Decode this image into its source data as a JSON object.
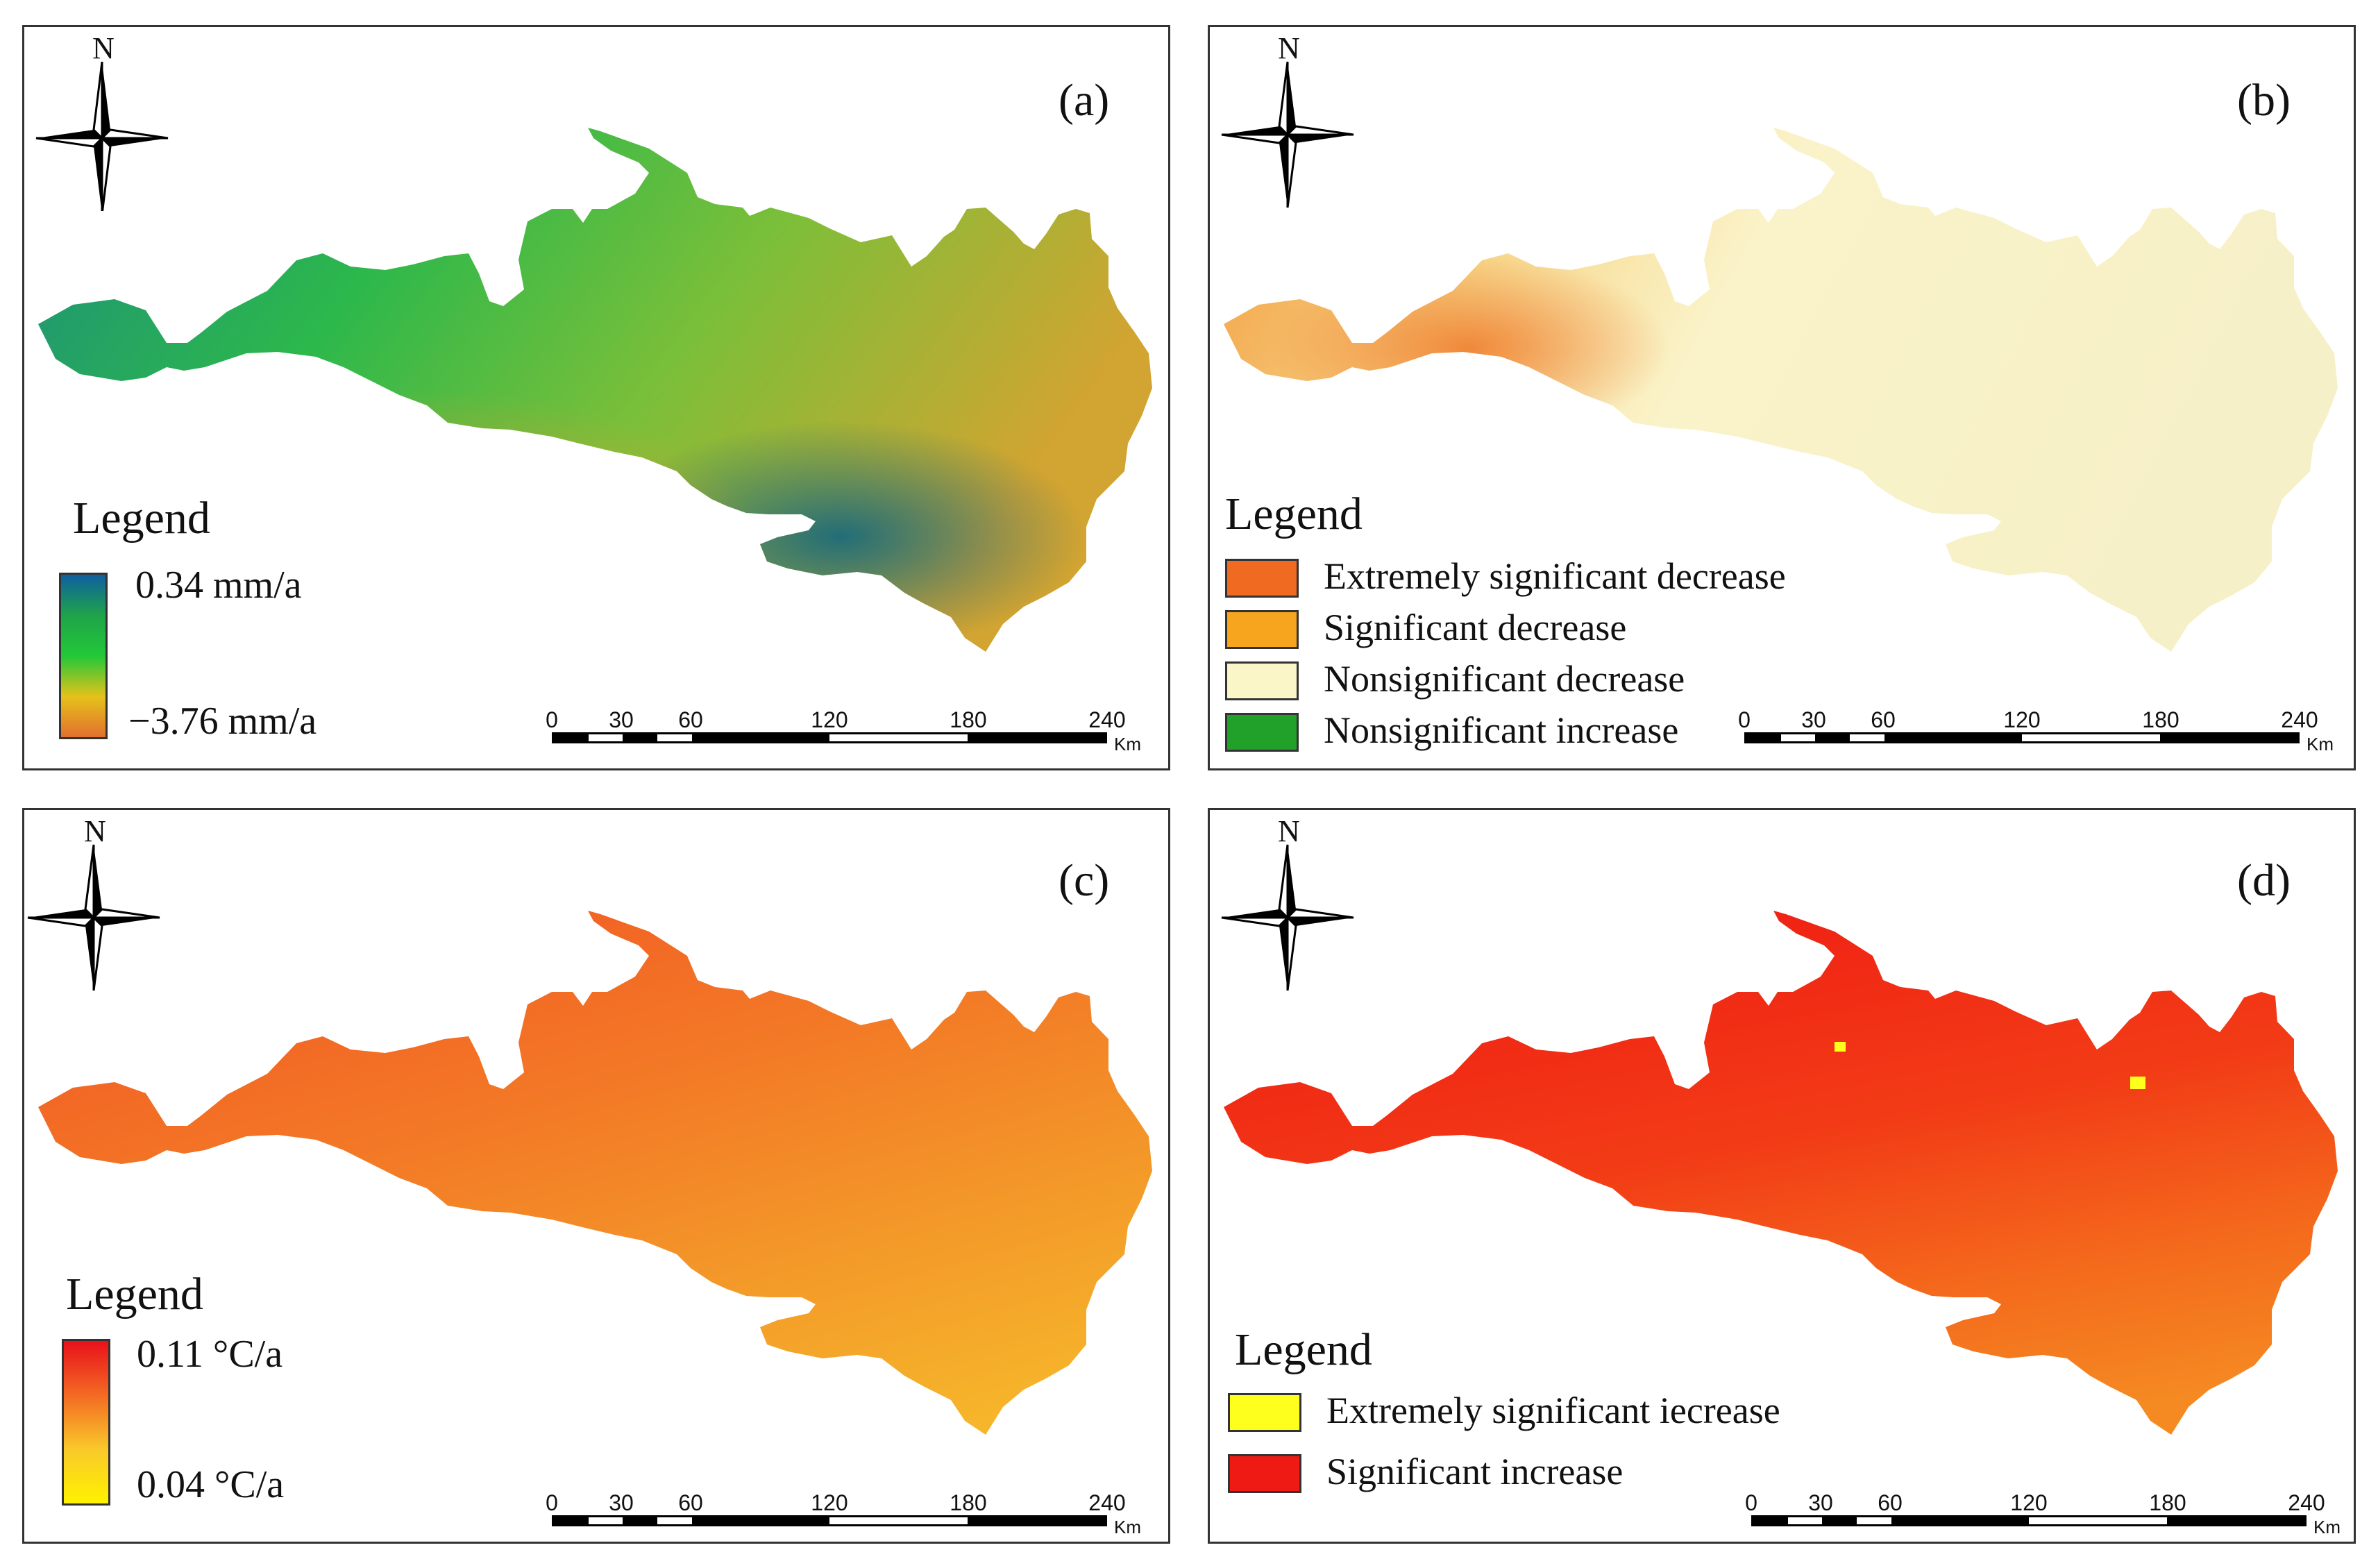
{
  "panels": [
    {
      "id": "a",
      "label": "(a)",
      "north": "N",
      "legend_title": "Legend",
      "legend_type": "ramp",
      "ramp": {
        "max_label": "0.34 mm/a",
        "min_label": "−3.76 mm/a",
        "colors": [
          "#0e5fa0",
          "#1fa34a",
          "#22c837",
          "#e4c21b",
          "#e2702e"
        ]
      },
      "map_fill": [
        "#1c8e7c",
        "#2db84b",
        "#7bbf39",
        "#d2a431"
      ],
      "scale": {
        "ticks": [
          "0",
          "30",
          "60",
          "120",
          "180",
          "240"
        ],
        "unit": "Km"
      }
    },
    {
      "id": "b",
      "label": "(b)",
      "north": "N",
      "legend_title": "Legend",
      "legend_type": "classes",
      "classes": [
        {
          "label": "Extremely significant decrease",
          "color": "#f06a22"
        },
        {
          "label": "Significant decrease",
          "color": "#f7a51e"
        },
        {
          "label": "Nonsignificant decrease",
          "color": "#fbf6c8"
        },
        {
          "label": "Nonsignificant increase",
          "color": "#22a12a"
        }
      ],
      "map_fill": [
        "#f29a3c",
        "#f7d78a",
        "#faf3c9",
        "#f6f0c8"
      ],
      "scale": {
        "ticks": [
          "0",
          "30",
          "60",
          "120",
          "180",
          "240"
        ],
        "unit": "Km"
      }
    },
    {
      "id": "c",
      "label": "(c)",
      "north": "N",
      "legend_title": "Legend",
      "legend_type": "ramp",
      "ramp": {
        "max_label": "0.11 °C/a",
        "min_label": "0.04 °C/a",
        "colors": [
          "#e8111b",
          "#f36a23",
          "#f9c92a",
          "#fff200"
        ]
      },
      "map_fill": [
        "#f25a24",
        "#f37a26",
        "#f39829",
        "#f6b52a"
      ],
      "scale": {
        "ticks": [
          "0",
          "30",
          "60",
          "120",
          "180",
          "240"
        ],
        "unit": "Km"
      }
    },
    {
      "id": "d",
      "label": "(d)",
      "north": "N",
      "legend_title": "Legend",
      "legend_type": "classes",
      "classes": [
        {
          "label": "Extremely significant iecrease",
          "color": "#ffff1e"
        },
        {
          "label": "Significant increase",
          "color": "#f01a14"
        }
      ],
      "map_fill": [
        "#f01e14",
        "#f23c16",
        "#f46a1c",
        "#f58a22"
      ],
      "scale": {
        "ticks": [
          "0",
          "30",
          "60",
          "120",
          "180",
          "240"
        ],
        "unit": "Km"
      }
    }
  ]
}
